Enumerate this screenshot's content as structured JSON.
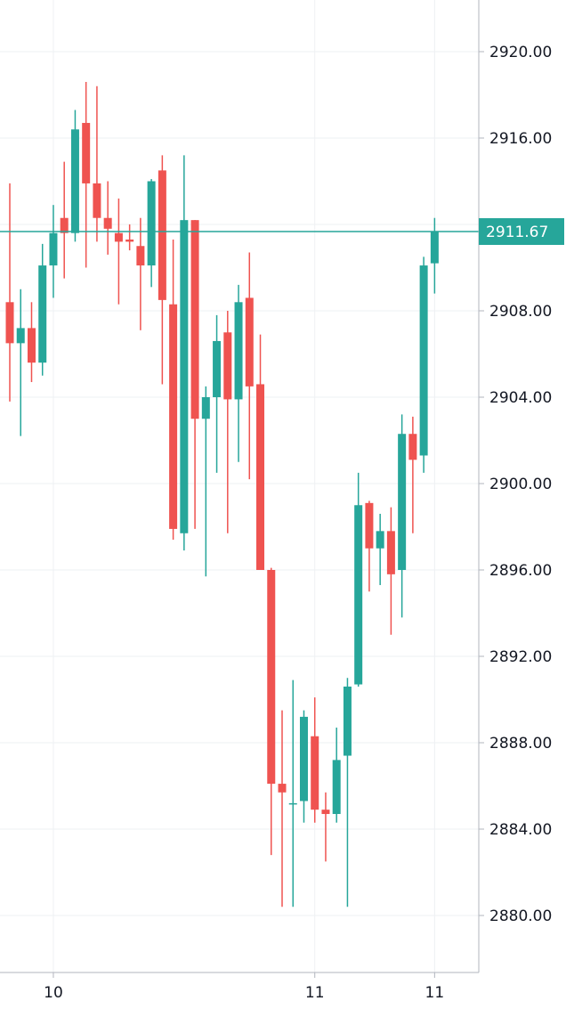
{
  "colors": {
    "up": "#26a69a",
    "down": "#ef5350",
    "grid": "#eef0f3",
    "axis_line": "#b2b5be",
    "text": "#131722",
    "last_price": "#26a69a"
  },
  "chart_data": {
    "type": "candlestick",
    "title": "",
    "xlabel": "",
    "ylabel": "",
    "grid": true,
    "y_axis_position": "right",
    "ylim": [
      2877.5,
      2922.5
    ],
    "y_ticks": [
      "2880.00",
      "2884.00",
      "2888.00",
      "2892.00",
      "2896.00",
      "2900.00",
      "2904.00",
      "2908.00",
      "2912.00",
      "2916.00",
      "2920.00"
    ],
    "x_ticks": [
      {
        "label": "10",
        "index": 4
      },
      {
        "label": "11",
        "index": 28
      },
      {
        "label": "11",
        "index": 39
      }
    ],
    "last_price": "2911.67",
    "candles": [
      {
        "o": 2908.4,
        "h": 2913.9,
        "l": 2903.8,
        "c": 2906.5
      },
      {
        "o": 2906.5,
        "h": 2909.0,
        "l": 2902.2,
        "c": 2907.2
      },
      {
        "o": 2907.2,
        "h": 2908.4,
        "l": 2904.7,
        "c": 2905.6
      },
      {
        "o": 2905.6,
        "h": 2911.1,
        "l": 2905.0,
        "c": 2910.1
      },
      {
        "o": 2910.1,
        "h": 2912.9,
        "l": 2908.6,
        "c": 2911.6
      },
      {
        "o": 2912.3,
        "h": 2914.9,
        "l": 2909.5,
        "c": 2911.6
      },
      {
        "o": 2911.6,
        "h": 2917.3,
        "l": 2911.2,
        "c": 2916.4
      },
      {
        "o": 2916.7,
        "h": 2918.6,
        "l": 2910.0,
        "c": 2913.9
      },
      {
        "o": 2913.9,
        "h": 2918.4,
        "l": 2911.2,
        "c": 2912.3
      },
      {
        "o": 2912.3,
        "h": 2914.0,
        "l": 2910.6,
        "c": 2911.8
      },
      {
        "o": 2911.6,
        "h": 2913.2,
        "l": 2908.3,
        "c": 2911.2
      },
      {
        "o": 2911.3,
        "h": 2912.0,
        "l": 2910.8,
        "c": 2911.2
      },
      {
        "o": 2911.0,
        "h": 2912.3,
        "l": 2907.1,
        "c": 2910.1
      },
      {
        "o": 2910.1,
        "h": 2914.1,
        "l": 2909.1,
        "c": 2914.0
      },
      {
        "o": 2914.5,
        "h": 2915.2,
        "l": 2904.6,
        "c": 2908.5
      },
      {
        "o": 2908.3,
        "h": 2911.3,
        "l": 2897.4,
        "c": 2897.9
      },
      {
        "o": 2897.7,
        "h": 2915.2,
        "l": 2896.9,
        "c": 2912.2
      },
      {
        "o": 2912.2,
        "h": 2912.2,
        "l": 2897.9,
        "c": 2903.0
      },
      {
        "o": 2903.0,
        "h": 2904.5,
        "l": 2895.7,
        "c": 2904.0
      },
      {
        "o": 2904.0,
        "h": 2907.8,
        "l": 2900.5,
        "c": 2906.6
      },
      {
        "o": 2907.0,
        "h": 2908.0,
        "l": 2897.7,
        "c": 2903.9
      },
      {
        "o": 2903.9,
        "h": 2909.2,
        "l": 2901.0,
        "c": 2908.4
      },
      {
        "o": 2908.6,
        "h": 2910.7,
        "l": 2900.2,
        "c": 2904.5
      },
      {
        "o": 2904.6,
        "h": 2906.9,
        "l": 2896.0,
        "c": 2896.0
      },
      {
        "o": 2896.0,
        "h": 2896.1,
        "l": 2882.8,
        "c": 2886.1
      },
      {
        "o": 2886.1,
        "h": 2889.5,
        "l": 2880.4,
        "c": 2885.7
      },
      {
        "o": 2885.2,
        "h": 2890.9,
        "l": 2880.4,
        "c": 2885.2
      },
      {
        "o": 2885.3,
        "h": 2889.5,
        "l": 2884.3,
        "c": 2889.2
      },
      {
        "o": 2888.3,
        "h": 2890.1,
        "l": 2884.3,
        "c": 2884.9
      },
      {
        "o": 2884.9,
        "h": 2885.7,
        "l": 2882.5,
        "c": 2884.7
      },
      {
        "o": 2884.7,
        "h": 2888.7,
        "l": 2884.3,
        "c": 2887.2
      },
      {
        "o": 2887.4,
        "h": 2891.0,
        "l": 2880.4,
        "c": 2890.6
      },
      {
        "o": 2890.7,
        "h": 2900.5,
        "l": 2890.6,
        "c": 2899.0
      },
      {
        "o": 2899.1,
        "h": 2899.2,
        "l": 2895.0,
        "c": 2897.0
      },
      {
        "o": 2897.0,
        "h": 2898.6,
        "l": 2895.3,
        "c": 2897.8
      },
      {
        "o": 2897.8,
        "h": 2898.9,
        "l": 2893.0,
        "c": 2895.8
      },
      {
        "o": 2896.0,
        "h": 2903.2,
        "l": 2893.8,
        "c": 2902.3
      },
      {
        "o": 2902.3,
        "h": 2903.1,
        "l": 2897.7,
        "c": 2901.1
      },
      {
        "o": 2901.3,
        "h": 2910.5,
        "l": 2900.5,
        "c": 2910.1
      },
      {
        "o": 2910.2,
        "h": 2912.3,
        "l": 2908.8,
        "c": 2911.67
      }
    ]
  }
}
